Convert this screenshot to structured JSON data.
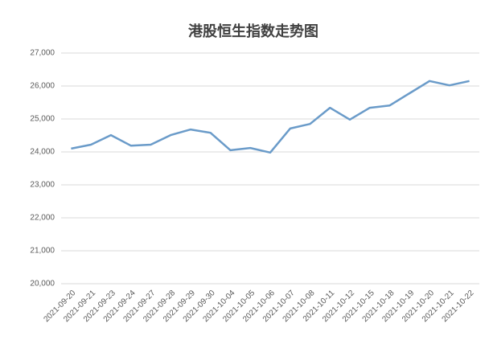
{
  "chart_data": {
    "type": "line",
    "title": "港股恒生指数走势图",
    "categories": [
      "2021-09-20",
      "2021-09-21",
      "2021-09-23",
      "2021-09-24",
      "2021-09-27",
      "2021-09-28",
      "2021-09-29",
      "2021-09-30",
      "2021-10-04",
      "2021-10-05",
      "2021-10-06",
      "2021-10-07",
      "2021-10-08",
      "2021-10-11",
      "2021-10-12",
      "2021-10-15",
      "2021-10-18",
      "2021-10-19",
      "2021-10-20",
      "2021-10-21",
      "2021-10-22"
    ],
    "values": [
      24100,
      24220,
      24510,
      24190,
      24220,
      24510,
      24680,
      24580,
      24050,
      24120,
      23980,
      24710,
      24850,
      25340,
      24980,
      25340,
      25410,
      25780,
      26150,
      26020,
      26150
    ],
    "color": "#6a9bc9",
    "ylim": [
      20000,
      27000
    ],
    "yticks": [
      {
        "value": 20000,
        "label": "20,000"
      },
      {
        "value": 21000,
        "label": "21,000"
      },
      {
        "value": 22000,
        "label": "22,000"
      },
      {
        "value": 23000,
        "label": "23,000"
      },
      {
        "value": 24000,
        "label": "24,000"
      },
      {
        "value": 25000,
        "label": "25,000"
      },
      {
        "value": 26000,
        "label": "26,000"
      },
      {
        "value": 27000,
        "label": "27,000"
      }
    ],
    "grid": true
  }
}
